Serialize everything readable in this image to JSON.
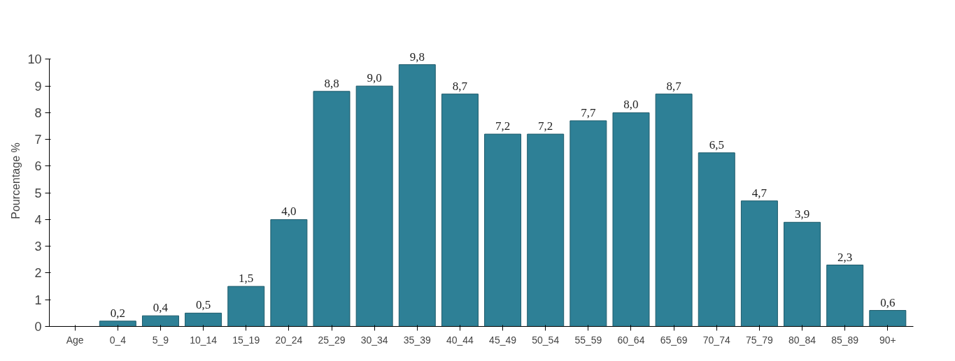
{
  "chart_data": {
    "type": "bar",
    "xlabel": "Age",
    "ylabel": "Pourcentage %",
    "categories": [
      "0_4",
      "5_9",
      "10_14",
      "15_19",
      "20_24",
      "25_29",
      "30_34",
      "35_39",
      "40_44",
      "45_49",
      "50_54",
      "55_59",
      "60_64",
      "65_69",
      "70_74",
      "75_79",
      "80_84",
      "85_89",
      "90+"
    ],
    "values": [
      0.2,
      0.4,
      0.5,
      1.5,
      4.0,
      8.8,
      9.0,
      9.8,
      8.7,
      7.2,
      7.2,
      7.7,
      8.0,
      8.7,
      6.5,
      4.7,
      3.9,
      2.3,
      0.6
    ],
    "value_labels": [
      "0,2",
      "0,4",
      "0,5",
      "1,5",
      "4,0",
      "8,8",
      "9,0",
      "9,8",
      "8,7",
      "7,2",
      "7,2",
      "7,7",
      "8,0",
      "8,7",
      "6,5",
      "4,7",
      "3,9",
      "2,3",
      "0,6"
    ],
    "color": "#2e8096",
    "ylim": [
      0,
      10
    ],
    "yticks": [
      0,
      1,
      2,
      3,
      4,
      5,
      6,
      7,
      8,
      9,
      10
    ],
    "grid": false
  }
}
